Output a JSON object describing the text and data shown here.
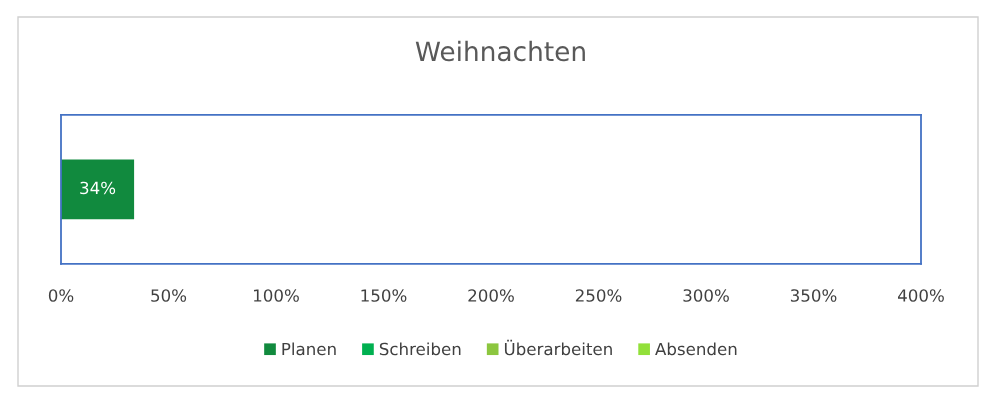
{
  "chart_data": {
    "type": "bar",
    "orientation": "horizontal",
    "stacked": true,
    "title": "Weihnachten",
    "categories": [
      null
    ],
    "series": [
      {
        "name": "Planen",
        "color": "#118a3e",
        "values": [
          34
        ],
        "value_labels": [
          "34%"
        ]
      },
      {
        "name": "Schreiben",
        "color": "#00b050",
        "values": [
          null
        ]
      },
      {
        "name": "Überarbeiten",
        "color": "#8cc63f",
        "values": [
          null
        ]
      },
      {
        "name": "Absenden",
        "color": "#92e03a",
        "values": [
          null
        ]
      }
    ],
    "xlim": [
      0,
      400
    ],
    "xticks": [
      {
        "value": 0,
        "label": "0%"
      },
      {
        "value": 50,
        "label": "50%"
      },
      {
        "value": 100,
        "label": "100%"
      },
      {
        "value": 150,
        "label": "150%"
      },
      {
        "value": 200,
        "label": "200%"
      },
      {
        "value": 250,
        "label": "250%"
      },
      {
        "value": 300,
        "label": "300%"
      },
      {
        "value": 350,
        "label": "350%"
      },
      {
        "value": 400,
        "label": "400%"
      }
    ],
    "grid": false,
    "legend": "bottom"
  }
}
